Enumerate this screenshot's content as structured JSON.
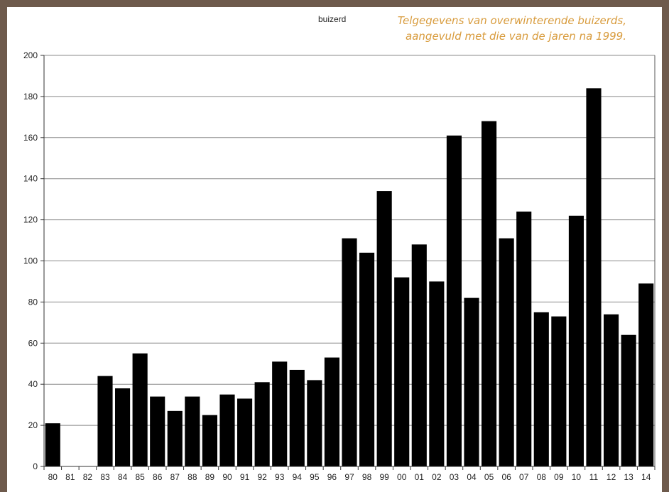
{
  "caption": {
    "line1": "Telgegevens van overwinterende buizerds,",
    "line2": "aangevuld met die van de jaren na 1999."
  },
  "colors": {
    "frame": "#6e5a4c",
    "bar": "#000000",
    "caption": "#d89b3c",
    "grid": "#888888"
  },
  "chart_data": {
    "type": "bar",
    "title": "buizerd",
    "categories": [
      "80",
      "81",
      "82",
      "83",
      "84",
      "85",
      "86",
      "87",
      "88",
      "89",
      "90",
      "91",
      "92",
      "93",
      "94",
      "95",
      "96",
      "97",
      "98",
      "99",
      "00",
      "01",
      "02",
      "03",
      "04",
      "05",
      "06",
      "07",
      "08",
      "09",
      "10",
      "11",
      "12",
      "13",
      "14"
    ],
    "values": [
      21,
      0,
      0,
      44,
      38,
      55,
      34,
      27,
      34,
      25,
      35,
      33,
      41,
      51,
      47,
      42,
      53,
      111,
      104,
      134,
      92,
      108,
      90,
      161,
      82,
      168,
      111,
      124,
      75,
      73,
      122,
      184,
      74,
      64,
      89
    ],
    "ylim": [
      0,
      200
    ],
    "yticks": [
      0,
      20,
      40,
      60,
      80,
      100,
      120,
      140,
      160,
      180,
      200
    ],
    "grid": true,
    "legend": "none"
  }
}
